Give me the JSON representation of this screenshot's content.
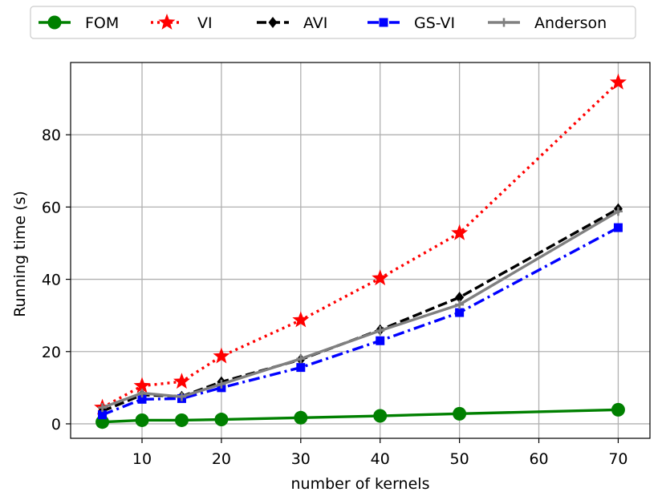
{
  "chart_data": {
    "type": "line",
    "title": "",
    "xlabel": "number of kernels",
    "ylabel": "Running time (s)",
    "x": [
      5,
      10,
      15,
      20,
      30,
      40,
      50,
      70
    ],
    "xlim": [
      1,
      74
    ],
    "ylim": [
      -4,
      100
    ],
    "xticks": [
      10,
      20,
      30,
      40,
      50,
      60,
      70
    ],
    "yticks": [
      0,
      20,
      40,
      60,
      80
    ],
    "grid": true,
    "legend_position": "top-center",
    "series": [
      {
        "name": "FOM",
        "color": "#008000",
        "linestyle": "solid",
        "marker": "circle",
        "values": [
          0.5,
          1.0,
          1.0,
          1.2,
          1.7,
          2.2,
          2.8,
          3.9
        ]
      },
      {
        "name": "VI",
        "color": "#ff0000",
        "linestyle": "dotted",
        "marker": "star",
        "values": [
          4.5,
          10.5,
          11.7,
          18.7,
          28.7,
          40.3,
          52.8,
          94.5
        ]
      },
      {
        "name": "AVI",
        "color": "#000000",
        "linestyle": "dashed",
        "marker": "diamond",
        "values": [
          3.5,
          8.0,
          7.6,
          11.6,
          17.8,
          26.0,
          35.0,
          59.5
        ]
      },
      {
        "name": "GS-VI",
        "color": "#0000ff",
        "linestyle": "dashdot",
        "marker": "square",
        "values": [
          2.5,
          6.8,
          7.0,
          10.0,
          15.6,
          23.0,
          30.8,
          54.3
        ]
      },
      {
        "name": "Anderson",
        "color": "#808080",
        "linestyle": "solid",
        "marker": "plus",
        "values": [
          4.5,
          8.5,
          7.5,
          11.0,
          18.0,
          25.8,
          33.0,
          58.8
        ]
      }
    ]
  }
}
